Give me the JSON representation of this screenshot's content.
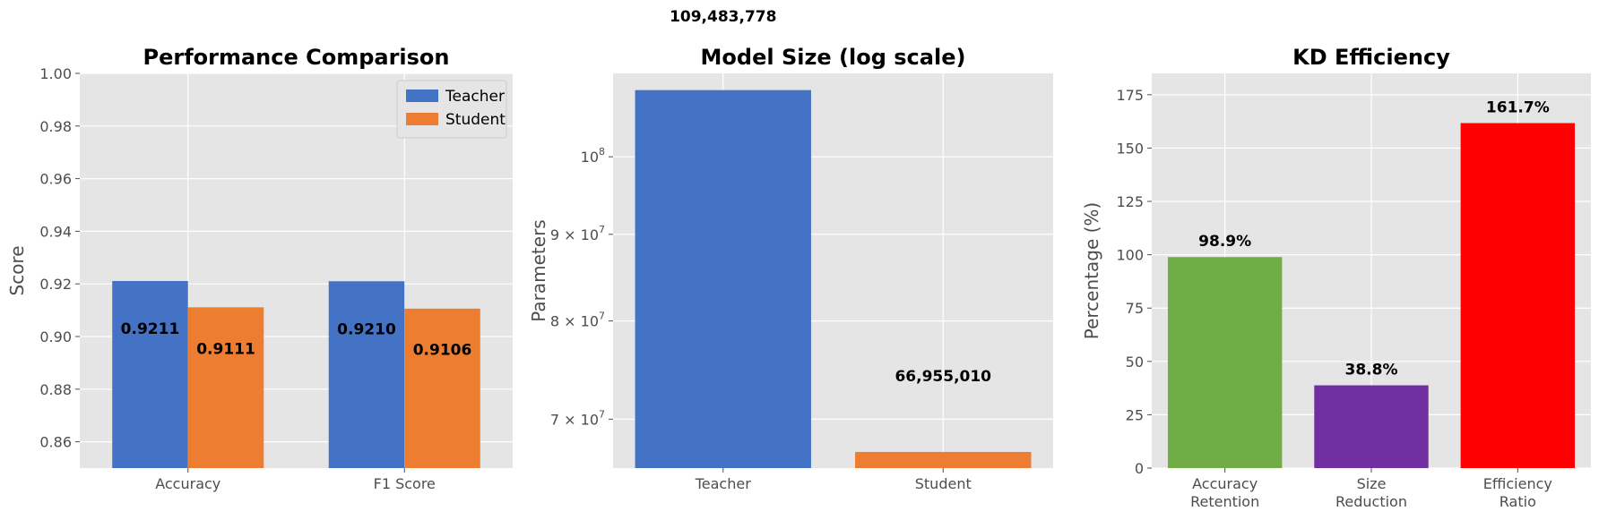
{
  "chart_data": [
    {
      "type": "bar",
      "title": "Performance Comparison",
      "xlabel": "",
      "ylabel": "Score",
      "categories": [
        "Accuracy",
        "F1 Score"
      ],
      "series": [
        {
          "name": "Teacher",
          "values": [
            0.9211,
            0.921
          ],
          "labels": [
            "0.9211",
            "0.9210"
          ],
          "color": "#4472C4"
        },
        {
          "name": "Student",
          "values": [
            0.9111,
            0.9106
          ],
          "labels": [
            "0.9111",
            "0.9106"
          ],
          "color": "#ED7D31"
        }
      ],
      "ylim": [
        0.85,
        1.0
      ],
      "yticks": [
        0.86,
        0.88,
        0.9,
        0.92,
        0.94,
        0.96,
        0.98,
        1.0
      ],
      "ytick_labels": [
        "0.86",
        "0.88",
        "0.90",
        "0.92",
        "0.94",
        "0.96",
        "0.98",
        "1.00"
      ],
      "legend": "top-right",
      "grid": true
    },
    {
      "type": "bar",
      "title": "Model Size (log scale)",
      "xlabel": "",
      "ylabel": "Parameters",
      "yscale": "log",
      "categories": [
        "Teacher",
        "Student"
      ],
      "values": [
        109483778,
        66955010
      ],
      "labels": [
        "109,483,778",
        "66,955,010"
      ],
      "colors": [
        "#4472C4",
        "#ED7D31"
      ],
      "ylim": [
        65500000,
        112000000
      ],
      "yticks": [
        70000000,
        80000000,
        90000000,
        100000000
      ],
      "ytick_labels": [
        {
          "base": "7 × 10",
          "exp": "7"
        },
        {
          "base": "8 × 10",
          "exp": "7"
        },
        {
          "base": "9 × 10",
          "exp": "7"
        },
        {
          "base": "10",
          "exp": "8"
        }
      ],
      "grid": true
    },
    {
      "type": "bar",
      "title": "KD Efficiency",
      "xlabel": "",
      "ylabel": "Percentage (%)",
      "categories": [
        [
          "Accuracy",
          "Retention"
        ],
        [
          "Size",
          "Reduction"
        ],
        [
          "Efficiency",
          "Ratio"
        ]
      ],
      "values": [
        98.9,
        38.8,
        161.7
      ],
      "labels": [
        "98.9%",
        "38.8%",
        "161.7%"
      ],
      "colors": [
        "#70AD47",
        "#7030A0",
        "#FF0000"
      ],
      "ylim": [
        0,
        185
      ],
      "yticks": [
        0,
        25,
        50,
        75,
        100,
        125,
        150,
        175
      ],
      "ytick_labels": [
        "0",
        "25",
        "50",
        "75",
        "100",
        "125",
        "150",
        "175"
      ],
      "grid": true
    }
  ]
}
